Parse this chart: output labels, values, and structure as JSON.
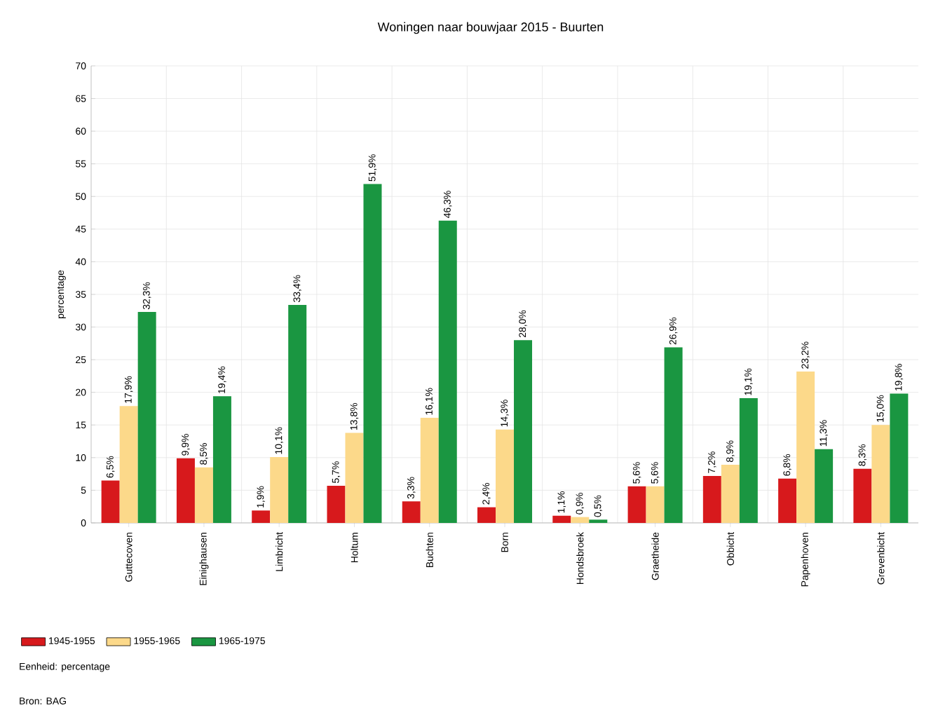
{
  "chart_data": {
    "type": "bar",
    "title": "Woningen naar bouwjaar 2015 - Buurten",
    "ylabel": "percentage",
    "categories": [
      "Guttecoven",
      "Einighausen",
      "Limbricht",
      "Holtum",
      "Buchten",
      "Born",
      "Hondsbroek",
      "Graetheide",
      "Obbicht",
      "Papenhoven",
      "Grevenbicht"
    ],
    "series": [
      {
        "name": "1945-1955",
        "color": "#d7191c",
        "values": [
          6.5,
          9.9,
          1.9,
          5.7,
          3.3,
          2.4,
          1.1,
          5.6,
          7.2,
          6.8,
          8.3
        ],
        "value_labels": [
          "6,5%",
          "9,9%",
          "1,9%",
          "5,7%",
          "3,3%",
          "2,4%",
          "1,1%",
          "5,6%",
          "7,2%",
          "6,8%",
          "8,3%"
        ]
      },
      {
        "name": "1955-1965",
        "color": "#fcd98a",
        "values": [
          17.9,
          8.5,
          10.1,
          13.8,
          16.1,
          14.3,
          0.9,
          5.6,
          8.9,
          23.2,
          15.0
        ],
        "value_labels": [
          "17,9%",
          "8,5%",
          "10,1%",
          "13,8%",
          "16,1%",
          "14,3%",
          "0,9%",
          "5,6%",
          "8,9%",
          "23,2%",
          "15,0%"
        ]
      },
      {
        "name": "1965-1975",
        "color": "#1a9641",
        "values": [
          32.3,
          19.4,
          33.4,
          51.9,
          46.3,
          28.0,
          0.5,
          26.9,
          19.1,
          11.3,
          19.8
        ],
        "value_labels": [
          "32,3%",
          "19,4%",
          "33,4%",
          "51,9%",
          "46,3%",
          "28,0%",
          "0,5%",
          "26,9%",
          "19,1%",
          "11,3%",
          "19,8%"
        ]
      }
    ],
    "ylim": [
      0,
      70
    ],
    "yticks": [
      0,
      5,
      10,
      15,
      20,
      25,
      30,
      35,
      40,
      45,
      50,
      55,
      60,
      65,
      70
    ],
    "grid": true,
    "legend": "bottom left",
    "annotations": [
      "Eenheid: percentage",
      "Bron: BAG"
    ]
  }
}
